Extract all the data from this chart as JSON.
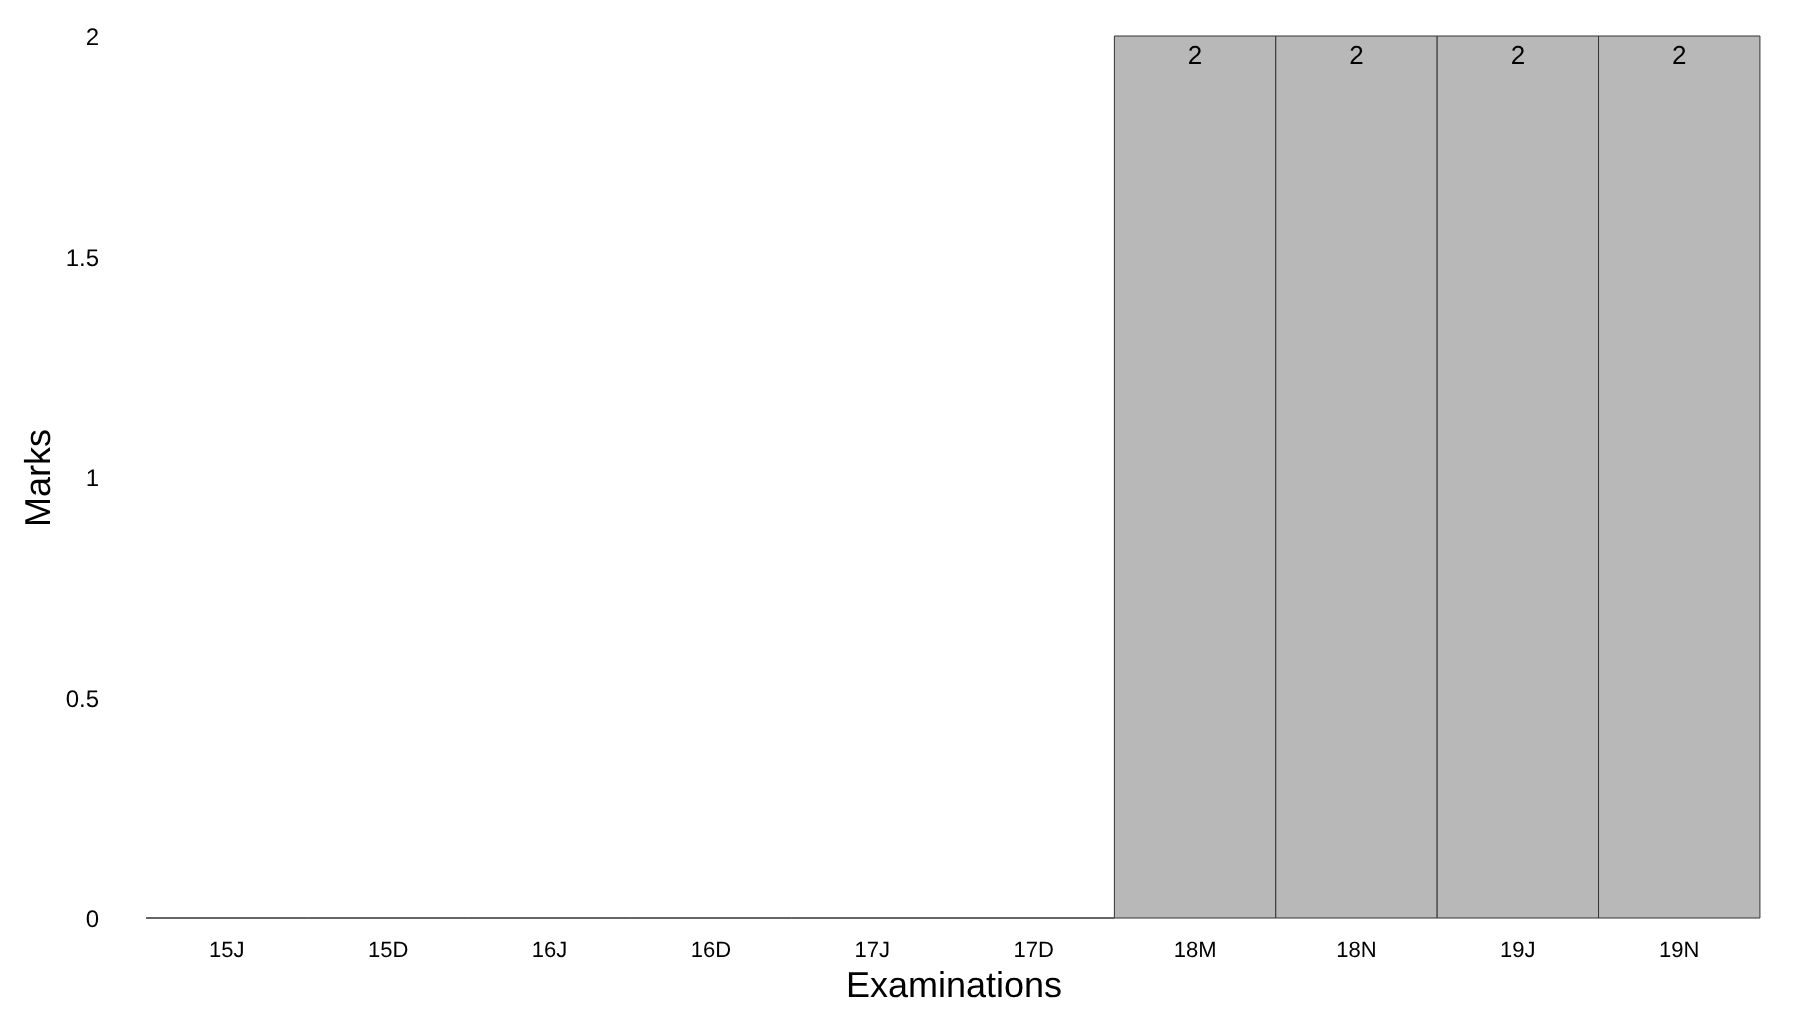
{
  "chart_data": {
    "type": "bar",
    "xlabel": "Examinations",
    "ylabel": "Marks",
    "categories": [
      "15J",
      "15D",
      "16J",
      "16D",
      "17J",
      "17D",
      "18M",
      "18N",
      "19J",
      "19N"
    ],
    "values": [
      0,
      0,
      0,
      0,
      0,
      0,
      2,
      2,
      2,
      2
    ],
    "value_labels": [
      null,
      null,
      null,
      null,
      null,
      null,
      "2",
      "2",
      "2",
      "2"
    ],
    "color": "#b8b8b8",
    "ylim": [
      0,
      2
    ],
    "yticks": [
      0,
      0.5,
      1,
      1.5,
      2
    ],
    "grid": false
  }
}
